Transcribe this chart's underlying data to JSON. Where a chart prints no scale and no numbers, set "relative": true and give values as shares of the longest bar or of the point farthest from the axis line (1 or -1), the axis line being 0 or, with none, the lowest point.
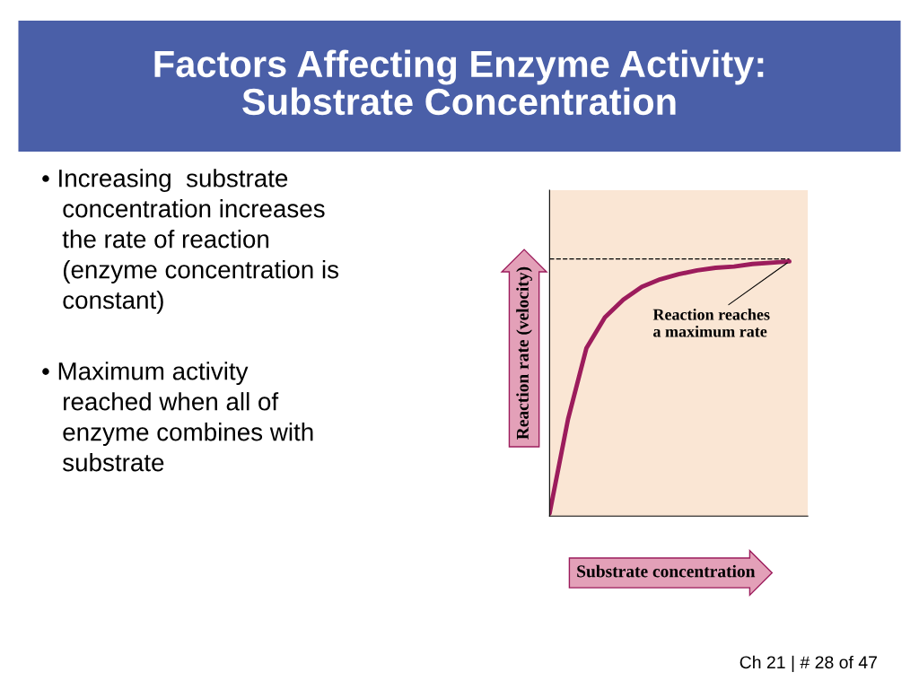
{
  "chart_data": {
    "type": "line",
    "title": "Factors Affecting Enzyme Activity:\nSubstrate Concentration",
    "xlabel": "Substrate concentration",
    "ylabel": "Reaction rate (velocity)",
    "relative": true,
    "categories": [
      null,
      null,
      null,
      null,
      null,
      null,
      null,
      null,
      null,
      null,
      null,
      null,
      null,
      null
    ],
    "series": [
      {
        "color": "#9c1c5c",
        "values": [
          0.01,
          0.38,
          0.66,
          0.78,
          0.85,
          0.9,
          0.93,
          0.95,
          0.965,
          0.975,
          0.98,
          0.99,
          0.995,
          1.0
        ]
      }
    ],
    "ref_lines": [
      {
        "axis": "y",
        "value": 1.01,
        "line_style": "dashed",
        "color": "#000000"
      }
    ],
    "marker": "none",
    "line_style": "solid",
    "annotations": [
      "• Increasing  substrate\n   concentration increases\n   the rate of reaction\n   (enzyme concentration is\n   constant)",
      "• Maximum activity\n   reached when all of\n   enzyme combines with\n   substrate",
      "Reaction reaches\na maximum rate",
      "Ch 21 | # 28 of 47"
    ]
  }
}
